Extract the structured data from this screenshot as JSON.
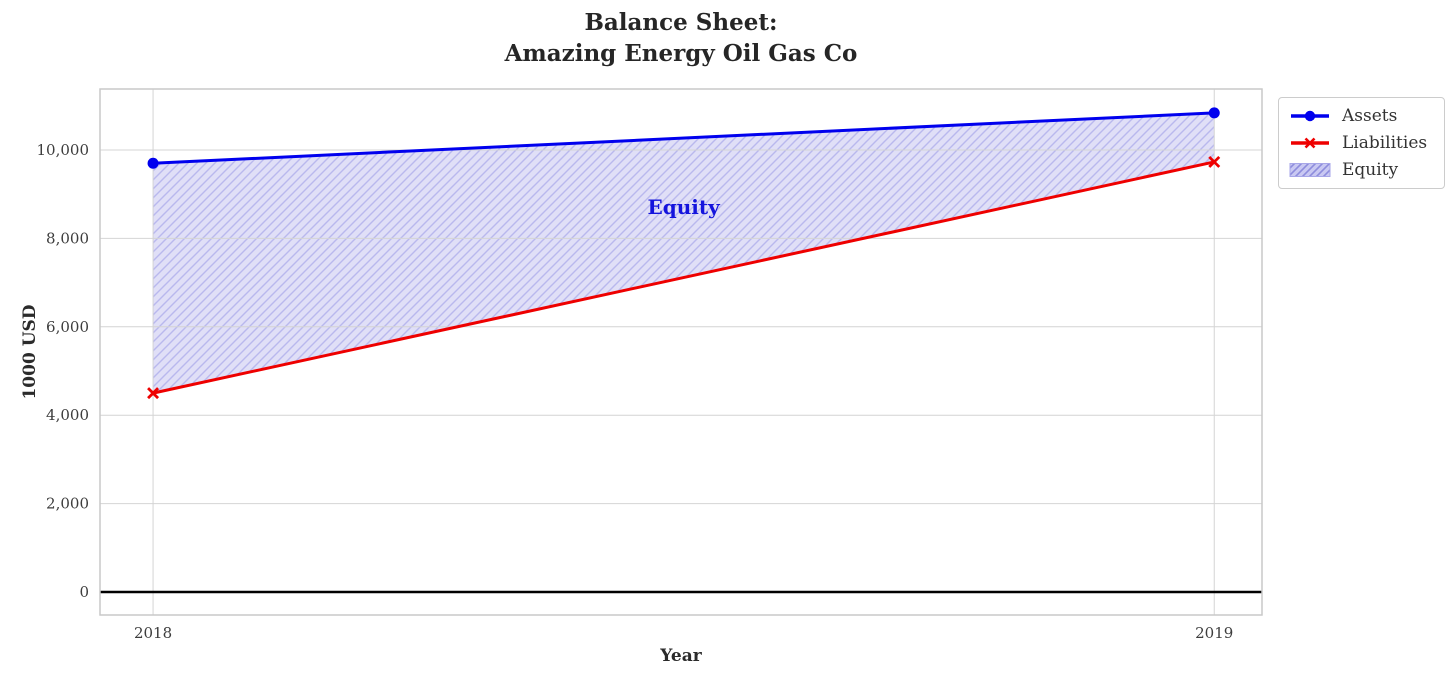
{
  "chart_data": {
    "type": "line",
    "title": "Balance Sheet:\nAmazing Energy Oil Gas Co",
    "title_lines": [
      "Balance Sheet:",
      "Amazing Energy Oil Gas Co"
    ],
    "xlabel": "Year",
    "ylabel": "1000 USD",
    "x": [
      2018,
      2019
    ],
    "x_tick_labels": [
      "2018",
      "2019"
    ],
    "series": [
      {
        "name": "Assets",
        "color": "#0000ee",
        "marker": "circle",
        "values": [
          9700,
          10840
        ]
      },
      {
        "name": "Liabilities",
        "color": "#ee0000",
        "marker": "x",
        "values": [
          4500,
          9730
        ]
      }
    ],
    "area": {
      "label": "Equity",
      "between": [
        "Assets",
        "Liabilities"
      ],
      "fill": "#e0dff7",
      "hatch_color": "#b9b8ee",
      "hatch": "//"
    },
    "annotation": {
      "text": "Equity",
      "x": 2018.5,
      "y": 8700,
      "color": "#1414dd"
    },
    "yticks": {
      "values": [
        0,
        2000,
        4000,
        6000,
        8000,
        10000
      ],
      "labels": [
        "0",
        "2,000",
        "4,000",
        "6,000",
        "8,000",
        "10,000"
      ]
    },
    "ylim": [
      -520,
      11380
    ],
    "xlim": [
      2017.95,
      2019.045
    ],
    "grid": true,
    "legend_position": "upper right, outside plot",
    "zero_line": {
      "value": 0,
      "color": "#000000"
    },
    "legend": {
      "entries": [
        "Assets",
        "Liabilities",
        "Equity"
      ]
    },
    "colors": {
      "grid": "#d4d4d4",
      "spine": "#c9c9c9",
      "tick_label": "#3d3d3d",
      "title": "#262626",
      "legend_swatch_fill": "#c9c8f2",
      "legend_hatch": "#8d8cdd"
    }
  }
}
